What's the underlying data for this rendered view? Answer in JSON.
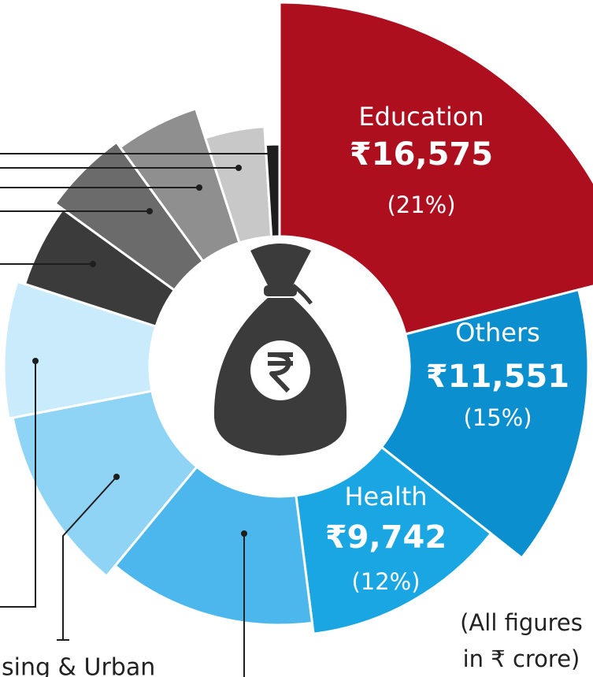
{
  "chart_data": {
    "type": "pie",
    "categories": [
      "Education",
      "Others",
      "Health",
      null,
      "sing & Urban",
      null,
      null,
      null,
      null,
      null,
      null
    ],
    "values": [
      16575,
      11551,
      9742,
      10260,
      8680,
      6310,
      3950,
      3950,
      3950,
      3160,
      790
    ],
    "value_labels": [
      "₹16,575",
      "₹11,551",
      "₹9,742",
      null,
      null,
      null,
      null,
      null,
      null,
      null,
      null
    ],
    "percent_labels": [
      "(21%)",
      "(15%)",
      "(12%)",
      null,
      null,
      null,
      null,
      null,
      null,
      null,
      null
    ],
    "colors": [
      "#ae0f1f",
      "#0c8fcf",
      "#1aa5e3",
      "#4cb7ec",
      "#8fd4f4",
      "#c9ebfb",
      "#3b3b3b",
      "#6b6b6b",
      "#8f8f8f",
      "#c8c8c8",
      "#1e1e1e"
    ],
    "note": [
      "(All figures",
      "in ₹ crore)"
    ]
  }
}
